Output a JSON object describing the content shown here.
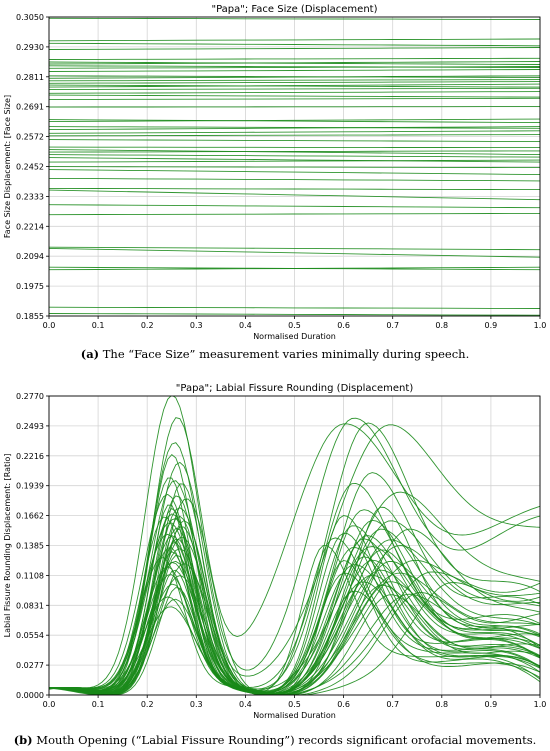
{
  "chart_data": [
    {
      "type": "line",
      "title": "\"Papa\"; Face Size (Displacement)",
      "xlabel": "Normalised Duration",
      "ylabel": "Face Size Displacement: [Face Size]",
      "xlim": [
        0,
        1
      ],
      "ylim": [
        0.1855,
        0.305
      ],
      "x_ticks": [
        "0.0",
        "0.1",
        "0.2",
        "0.3",
        "0.4",
        "0.5",
        "0.6",
        "0.7",
        "0.8",
        "0.9",
        "1.0"
      ],
      "y_ticks": [
        "0.1855",
        "0.1975",
        "0.2094",
        "0.2214",
        "0.2333",
        "0.2452",
        "0.2572",
        "0.2691",
        "0.2811",
        "0.2930",
        "0.3050"
      ],
      "grid": true,
      "color": "#1a8a1a",
      "series_values": [
        [
          0.3045,
          0.304
        ],
        [
          0.2955,
          0.2962
        ],
        [
          0.2945,
          0.2935
        ],
        [
          0.292,
          0.2928
        ],
        [
          0.288,
          0.2885
        ],
        [
          0.287,
          0.286
        ],
        [
          0.2862,
          0.2872
        ],
        [
          0.2855,
          0.2848
        ],
        [
          0.2845,
          0.2852
        ],
        [
          0.2832,
          0.284
        ],
        [
          0.2815,
          0.2808
        ],
        [
          0.2805,
          0.2815
        ],
        [
          0.2795,
          0.28
        ],
        [
          0.2785,
          0.2792
        ],
        [
          0.2778,
          0.277
        ],
        [
          0.277,
          0.2782
        ],
        [
          0.276,
          0.2765
        ],
        [
          0.2745,
          0.2752
        ],
        [
          0.2738,
          0.273
        ],
        [
          0.272,
          0.2725
        ],
        [
          0.269,
          0.2692
        ],
        [
          0.264,
          0.2628
        ],
        [
          0.2632,
          0.2642
        ],
        [
          0.2612,
          0.2605
        ],
        [
          0.26,
          0.2612
        ],
        [
          0.2585,
          0.2595
        ],
        [
          0.2575,
          0.258
        ],
        [
          0.256,
          0.2552
        ],
        [
          0.253,
          0.2528
        ],
        [
          0.252,
          0.25
        ],
        [
          0.251,
          0.2515
        ],
        [
          0.25,
          0.249
        ],
        [
          0.2488,
          0.247
        ],
        [
          0.247,
          0.2478
        ],
        [
          0.2452,
          0.2448
        ],
        [
          0.244,
          0.242
        ],
        [
          0.2405,
          0.2395
        ],
        [
          0.2365,
          0.236
        ],
        [
          0.2358,
          0.232
        ],
        [
          0.23,
          0.2288
        ],
        [
          0.226,
          0.2265
        ],
        [
          0.213,
          0.212
        ],
        [
          0.2125,
          0.209
        ],
        [
          0.205,
          0.204
        ],
        [
          0.204,
          0.205
        ],
        [
          0.189,
          0.1885
        ],
        [
          0.1865,
          0.1858
        ]
      ]
    },
    {
      "type": "line",
      "title": "\"Papa\"; Labial Fissure Rounding (Displacement)",
      "xlabel": "Normalised Duration",
      "ylabel": "Labial Fissure Rounding Displacement: [Ratio]",
      "xlim": [
        0,
        1
      ],
      "ylim": [
        0,
        0.277
      ],
      "x_ticks": [
        "0.0",
        "0.1",
        "0.2",
        "0.3",
        "0.4",
        "0.5",
        "0.6",
        "0.7",
        "0.8",
        "0.9",
        "1.0"
      ],
      "y_ticks": [
        "0.0000",
        "0.0277",
        "0.0554",
        "0.0831",
        "0.1108",
        "0.1385",
        "0.1662",
        "0.1939",
        "0.2216",
        "0.2493",
        "0.2770"
      ],
      "grid": true,
      "color": "#1a8a1a",
      "curve_params": [
        [
          0.25,
          0.275,
          0.055,
          0.62,
          0.25,
          0.12,
          0.16
        ],
        [
          0.26,
          0.25,
          0.05,
          0.6,
          0.245,
          0.15,
          0.17
        ],
        [
          0.255,
          0.23,
          0.05,
          0.7,
          0.246,
          0.16,
          0.15
        ],
        [
          0.25,
          0.22,
          0.045,
          0.65,
          0.245,
          0.11,
          0.09
        ],
        [
          0.265,
          0.21,
          0.05,
          0.66,
          0.2,
          0.1,
          0.08
        ],
        [
          0.245,
          0.2,
          0.045,
          0.62,
          0.19,
          0.09,
          0.06
        ],
        [
          0.255,
          0.195,
          0.05,
          0.72,
          0.185,
          0.14,
          0.1
        ],
        [
          0.27,
          0.19,
          0.045,
          0.68,
          0.17,
          0.08,
          0.04
        ],
        [
          0.24,
          0.185,
          0.05,
          0.64,
          0.165,
          0.09,
          0.05
        ],
        [
          0.26,
          0.18,
          0.045,
          0.6,
          0.16,
          0.07,
          0.03
        ],
        [
          0.28,
          0.175,
          0.05,
          0.7,
          0.16,
          0.11,
          0.08
        ],
        [
          0.25,
          0.17,
          0.04,
          0.66,
          0.155,
          0.09,
          0.04
        ],
        [
          0.265,
          0.168,
          0.05,
          0.62,
          0.15,
          0.08,
          0.03
        ],
        [
          0.235,
          0.165,
          0.045,
          0.74,
          0.15,
          0.12,
          0.07
        ],
        [
          0.255,
          0.16,
          0.045,
          0.68,
          0.148,
          0.1,
          0.05
        ],
        [
          0.245,
          0.158,
          0.05,
          0.6,
          0.145,
          0.07,
          0.02
        ],
        [
          0.275,
          0.155,
          0.045,
          0.65,
          0.142,
          0.09,
          0.04
        ],
        [
          0.26,
          0.15,
          0.04,
          0.7,
          0.14,
          0.11,
          0.06
        ],
        [
          0.24,
          0.148,
          0.05,
          0.64,
          0.138,
          0.08,
          0.03
        ],
        [
          0.25,
          0.145,
          0.045,
          0.72,
          0.135,
          0.12,
          0.08
        ],
        [
          0.27,
          0.14,
          0.05,
          0.66,
          0.132,
          0.1,
          0.05
        ],
        [
          0.255,
          0.138,
          0.04,
          0.62,
          0.13,
          0.08,
          0.02
        ],
        [
          0.245,
          0.135,
          0.045,
          0.68,
          0.128,
          0.09,
          0.04
        ],
        [
          0.265,
          0.13,
          0.05,
          0.75,
          0.125,
          0.13,
          0.09
        ],
        [
          0.23,
          0.128,
          0.045,
          0.64,
          0.122,
          0.07,
          0.02
        ],
        [
          0.26,
          0.125,
          0.04,
          0.7,
          0.12,
          0.1,
          0.05
        ],
        [
          0.25,
          0.12,
          0.05,
          0.66,
          0.118,
          0.09,
          0.03
        ],
        [
          0.24,
          0.118,
          0.045,
          0.62,
          0.115,
          0.08,
          0.02
        ],
        [
          0.275,
          0.115,
          0.05,
          0.68,
          0.112,
          0.1,
          0.04
        ],
        [
          0.255,
          0.112,
          0.04,
          0.72,
          0.11,
          0.12,
          0.06
        ],
        [
          0.245,
          0.11,
          0.045,
          0.6,
          0.108,
          0.07,
          0.01
        ],
        [
          0.265,
          0.105,
          0.05,
          0.66,
          0.105,
          0.09,
          0.03
        ],
        [
          0.25,
          0.1,
          0.045,
          0.7,
          0.1,
          0.1,
          0.05
        ],
        [
          0.26,
          0.095,
          0.04,
          0.64,
          0.098,
          0.08,
          0.02
        ],
        [
          0.24,
          0.09,
          0.05,
          0.68,
          0.095,
          0.09,
          0.03
        ],
        [
          0.255,
          0.085,
          0.045,
          0.74,
          0.092,
          0.11,
          0.06
        ],
        [
          0.245,
          0.08,
          0.05,
          0.62,
          0.09,
          0.07,
          0.015
        ],
        [
          0.27,
          0.15,
          0.045,
          0.78,
          0.115,
          0.12,
          0.1
        ],
        [
          0.25,
          0.165,
          0.05,
          0.82,
          0.105,
          0.11,
          0.085
        ],
        [
          0.26,
          0.14,
          0.045,
          0.56,
          0.135,
          0.06,
          0.01
        ],
        [
          0.245,
          0.175,
          0.04,
          0.58,
          0.142,
          0.07,
          0.015
        ],
        [
          0.255,
          0.12,
          0.05,
          0.76,
          0.095,
          0.1,
          0.07
        ],
        [
          0.265,
          0.16,
          0.045,
          0.6,
          0.118,
          0.06,
          0.008
        ],
        [
          0.25,
          0.13,
          0.04,
          0.7,
          0.088,
          0.09,
          0.04
        ]
      ]
    }
  ],
  "captions": {
    "a_label": "(a)",
    "a_text": " The “Face Size” measurement varies minimally during speech.",
    "b_label": "(b)",
    "b_text": " Mouth Opening (“Labial Fissure Rounding”) records significant orofacial movements."
  }
}
